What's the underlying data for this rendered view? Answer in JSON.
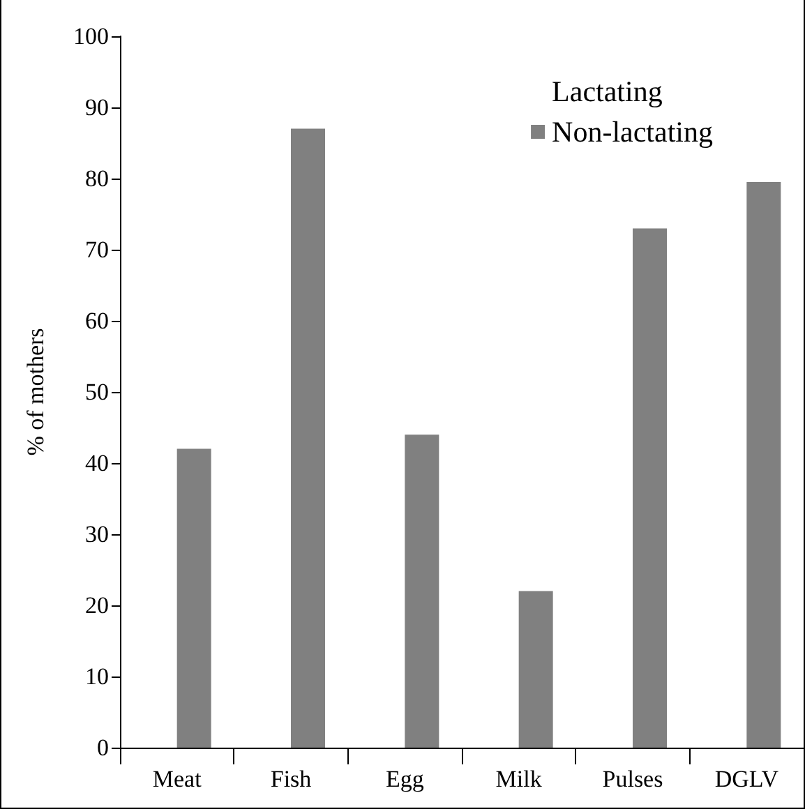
{
  "chart_data": {
    "type": "bar",
    "ylabel": "% of mothers",
    "categories": [
      "Meat",
      "Fish",
      "Egg",
      "Milk",
      "Pulses",
      "DGLV"
    ],
    "series": [
      {
        "name": "Lactating",
        "values": [
          null,
          null,
          null,
          null,
          null,
          null
        ]
      },
      {
        "name": "Non-lactating",
        "color": "#808080",
        "values": [
          42,
          87,
          44,
          22,
          73,
          79.5
        ]
      }
    ],
    "ylim": [
      0,
      100
    ],
    "yticks": [
      0,
      10,
      20,
      30,
      40,
      50,
      60,
      70,
      80,
      90,
      100
    ],
    "grid": false,
    "legend": "top right"
  }
}
